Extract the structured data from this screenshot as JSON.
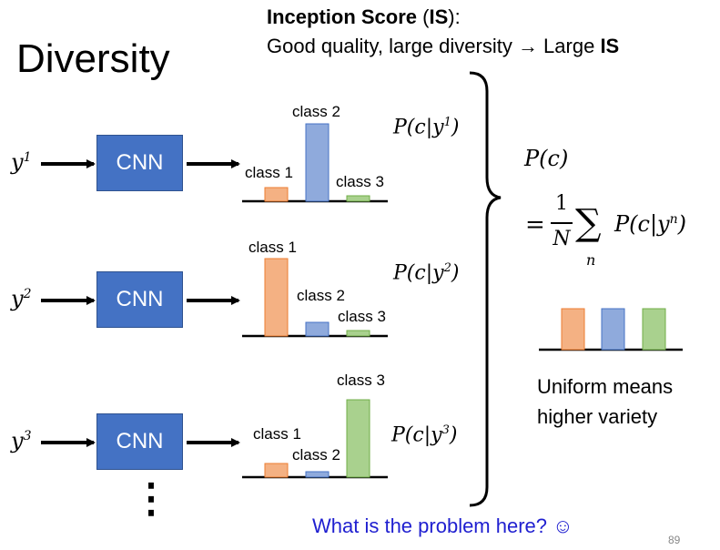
{
  "title": "Diversity",
  "inception": {
    "label_bold": "Inception Score",
    "label_paren_open": " (",
    "abbr": "IS",
    "label_paren_close": "):",
    "line2_text": "Good quality, large diversity → Large ",
    "line2_bold": "IS"
  },
  "cnn_label": "CNN",
  "rows": [
    {
      "input_base": "y",
      "input_sup": "1",
      "prob_prefix": "P(c|y",
      "prob_sup": "1",
      "prob_suffix": ")",
      "classes": [
        {
          "label": "class 1",
          "value": 0.15
        },
        {
          "label": "class 2",
          "value": 0.85
        },
        {
          "label": "class 3",
          "value": 0.06
        }
      ]
    },
    {
      "input_base": "y",
      "input_sup": "2",
      "prob_prefix": "P(c|y",
      "prob_sup": "2",
      "prob_suffix": ")",
      "classes": [
        {
          "label": "class 1",
          "value": 0.85
        },
        {
          "label": "class 2",
          "value": 0.15
        },
        {
          "label": "class 3",
          "value": 0.06
        }
      ]
    },
    {
      "input_base": "y",
      "input_sup": "3",
      "prob_prefix": "P(c|y",
      "prob_sup": "3",
      "prob_suffix": ")",
      "classes": [
        {
          "label": "class 1",
          "value": 0.15
        },
        {
          "label": "class 2",
          "value": 0.06
        },
        {
          "label": "class 3",
          "value": 0.85
        }
      ]
    }
  ],
  "ellipsis": "⋮",
  "marginal": {
    "pc": "P(c)",
    "eq": "=",
    "frac_num": "1",
    "frac_den": "N",
    "sum": "∑",
    "sum_index": "n",
    "term_prefix": "P(c|y",
    "term_sup": "n",
    "term_suffix": ")",
    "values": [
      0.45,
      0.45,
      0.45
    ]
  },
  "note_line1": "Uniform means",
  "note_line2": "higher variety",
  "question": "What is the problem here? ☺",
  "page_number": "89",
  "colors": {
    "class1_fill": "#f4b183",
    "class1_stroke": "#ed7d31",
    "class2_fill": "#8faadc",
    "class2_stroke": "#4472c4",
    "class3_fill": "#a9d18e",
    "class3_stroke": "#70ad47",
    "cnn_fill": "#4472c4",
    "question": "#1f1fd0"
  }
}
